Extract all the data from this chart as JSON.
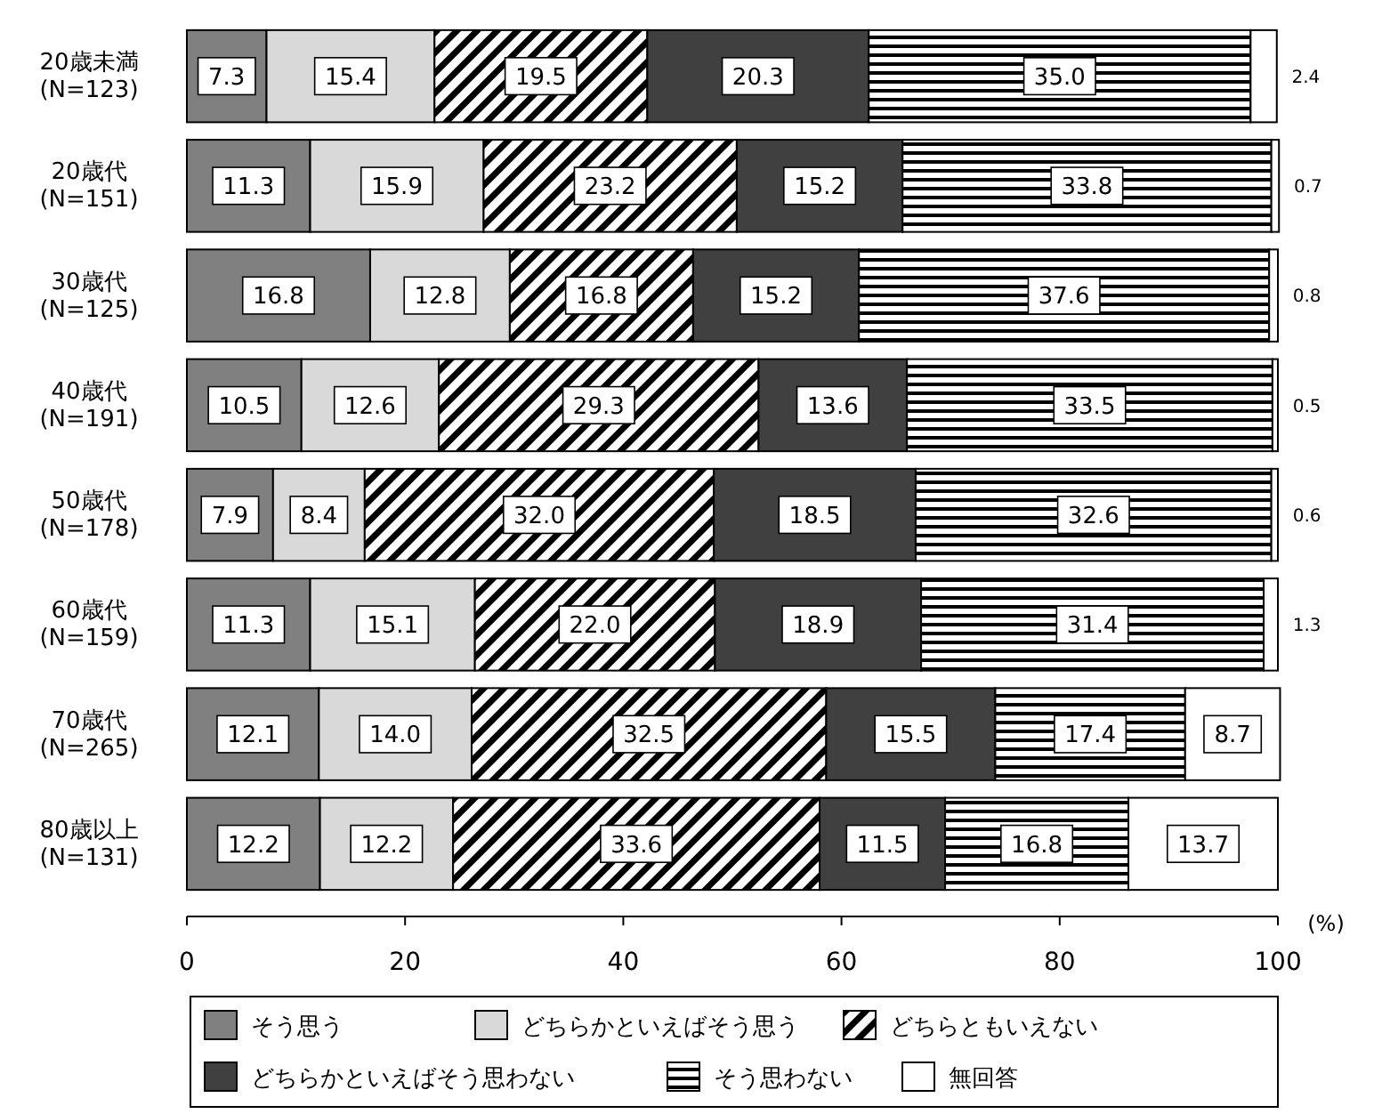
{
  "chart_data": {
    "type": "bar",
    "orientation": "horizontal",
    "stacked": true,
    "legend": "bottom",
    "xlabel": "(%)",
    "categories": [
      "20歳未満\n(N=123)",
      "20歳代\n(N=151)",
      "30歳代\n(N=125)",
      "40歳代\n(N=191)",
      "50歳代\n(N=178)",
      "60歳代\n(N=159)",
      "70歳代\n(N=265)",
      "80歳以上\n(N=131)"
    ],
    "xlim": [
      0,
      100
    ],
    "xticks": [
      0,
      20,
      40,
      60,
      80,
      100
    ],
    "series": [
      {
        "name": "そう思う",
        "color": "#808080",
        "values": [
          7.3,
          11.3,
          16.8,
          10.5,
          7.9,
          11.3,
          12.1,
          12.2
        ],
        "value_labels": [
          "7.3",
          "11.3",
          "16.8",
          "10.5",
          "7.9",
          "11.3",
          "12.1",
          "12.2"
        ]
      },
      {
        "name": "どちらかといえばそう思う",
        "color": "#d9d9d9",
        "values": [
          15.4,
          15.9,
          12.8,
          12.6,
          8.4,
          15.1,
          14.0,
          12.2
        ],
        "value_labels": [
          "15.4",
          "15.9",
          "12.8",
          "12.6",
          "8.4",
          "15.1",
          "14.0",
          "12.2"
        ]
      },
      {
        "name": "どちらともいえない",
        "color": "#000000",
        "values": [
          19.5,
          23.2,
          16.8,
          29.3,
          32.0,
          22.0,
          32.5,
          33.6
        ],
        "value_labels": [
          "19.5",
          "23.2",
          "16.8",
          "29.3",
          "32.0",
          "22.0",
          "32.5",
          "33.6"
        ]
      },
      {
        "name": "どちらかといえばそう思わない",
        "color": "#404040",
        "values": [
          20.3,
          15.2,
          15.2,
          13.6,
          18.5,
          18.9,
          15.5,
          11.5
        ],
        "value_labels": [
          "20.3",
          "15.2",
          "15.2",
          "13.6",
          "18.5",
          "18.9",
          "15.5",
          "11.5"
        ]
      },
      {
        "name": "そう思わない",
        "color": "#000000",
        "values": [
          35.0,
          33.8,
          37.6,
          33.5,
          32.6,
          31.4,
          17.4,
          16.8
        ],
        "value_labels": [
          "35.0",
          "33.8",
          "37.6",
          "33.5",
          "32.6",
          "31.4",
          "17.4",
          "16.8"
        ]
      },
      {
        "name": "無回答",
        "color": "#ffffff",
        "values": [
          2.4,
          0.7,
          0.8,
          0.5,
          0.6,
          1.3,
          8.7,
          13.7
        ],
        "value_labels": [
          "2.4",
          "0.7",
          "0.8",
          "0.5",
          "0.6",
          "1.3",
          "8.7",
          "13.7"
        ]
      }
    ]
  }
}
